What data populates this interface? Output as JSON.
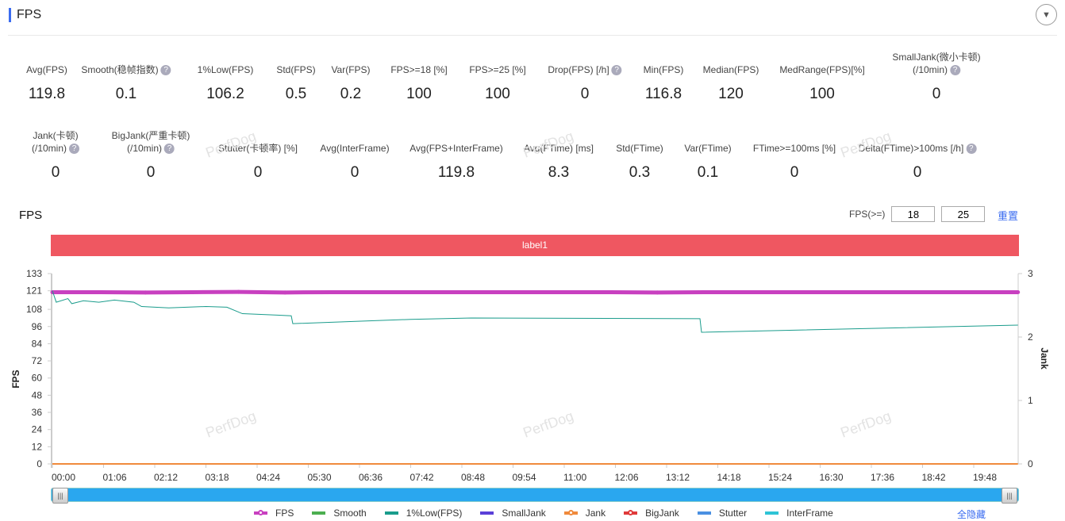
{
  "header": {
    "title": "FPS",
    "collapse_icon": "chevron-down-icon"
  },
  "metrics_row1": [
    {
      "label": "Avg(FPS)",
      "value": "119.8",
      "help": false
    },
    {
      "label": "Smooth(稳帧指数)",
      "value": "0.1",
      "help": true
    },
    {
      "label": "1%Low(FPS)",
      "value": "106.2",
      "help": false
    },
    {
      "label": "Std(FPS)",
      "value": "0.5",
      "help": false
    },
    {
      "label": "Var(FPS)",
      "value": "0.2",
      "help": false
    },
    {
      "label": "FPS>=18 [%]",
      "value": "100",
      "help": false
    },
    {
      "label": "FPS>=25 [%]",
      "value": "100",
      "help": false
    },
    {
      "label": "Drop(FPS) [/h]",
      "value": "0",
      "help": true
    },
    {
      "label": "Min(FPS)",
      "value": "116.8",
      "help": false
    },
    {
      "label": "Median(FPS)",
      "value": "120",
      "help": false
    },
    {
      "label": "MedRange(FPS)[%]",
      "value": "100",
      "help": false
    },
    {
      "label": "SmallJank(微小卡顿)",
      "label2": "(/10min)",
      "value": "0",
      "help": true
    }
  ],
  "metrics_row2": [
    {
      "label": "Jank(卡顿)",
      "label2": "(/10min)",
      "value": "0",
      "help": true
    },
    {
      "label": "BigJank(严重卡顿)",
      "label2": "(/10min)",
      "value": "0",
      "help": true
    },
    {
      "label": "Stutter(卡顿率) [%]",
      "value": "0",
      "help": false
    },
    {
      "label": "Avg(InterFrame)",
      "value": "0",
      "help": false
    },
    {
      "label": "Avg(FPS+InterFrame)",
      "value": "119.8",
      "help": false
    },
    {
      "label": "Avg(FTime) [ms]",
      "value": "8.3",
      "help": false
    },
    {
      "label": "Std(FTime)",
      "value": "0.3",
      "help": false
    },
    {
      "label": "Var(FTime)",
      "value": "0.1",
      "help": false
    },
    {
      "label": "FTime>=100ms [%]",
      "value": "0",
      "help": false
    },
    {
      "label": "Delta(FTime)>100ms [/h]",
      "value": "0",
      "help": true
    }
  ],
  "chart_section": {
    "title": "FPS",
    "fps_threshold_label": "FPS(>=)",
    "threshold1": "18",
    "threshold2": "25",
    "reset_label": "重置",
    "band_label": "label1",
    "hide_all_label": "全隐藏",
    "watermark": "PerfDog"
  },
  "chart_data": {
    "type": "line",
    "ylabel": "FPS",
    "y2label": "Jank",
    "ylim": [
      0,
      133
    ],
    "yticks": [
      0,
      12,
      24,
      36,
      48,
      60,
      72,
      84,
      96,
      108,
      121,
      133
    ],
    "y2lim": [
      0,
      3
    ],
    "y2ticks": [
      0,
      1,
      2,
      3
    ],
    "xticks": [
      "00:00",
      "01:06",
      "02:12",
      "03:18",
      "04:24",
      "05:30",
      "06:36",
      "07:42",
      "08:48",
      "09:54",
      "11:00",
      "12:06",
      "13:12",
      "14:18",
      "15:24",
      "16:30",
      "17:36",
      "18:42",
      "19:48"
    ],
    "xrange": [
      "00:00",
      "20:45"
    ],
    "legend": [
      {
        "name": "FPS",
        "color": "#c840c0"
      },
      {
        "name": "Smooth",
        "color": "#4caf50"
      },
      {
        "name": "1%Low(FPS)",
        "color": "#1a9c8c"
      },
      {
        "name": "SmallJank",
        "color": "#5a3fd8"
      },
      {
        "name": "Jank",
        "color": "#f08a3c"
      },
      {
        "name": "BigJank",
        "color": "#e03a3a"
      },
      {
        "name": "Stutter",
        "color": "#4a90e2"
      },
      {
        "name": "InterFrame",
        "color": "#2ec4d6"
      }
    ],
    "series": [
      {
        "name": "FPS",
        "axis": "left",
        "points": [
          [
            "00:00",
            120
          ],
          [
            "01:00",
            120
          ],
          [
            "02:00",
            119.8
          ],
          [
            "03:00",
            120
          ],
          [
            "04:00",
            120.2
          ],
          [
            "05:00",
            119.8
          ],
          [
            "06:00",
            120
          ],
          [
            "07:00",
            120
          ],
          [
            "08:00",
            120
          ],
          [
            "09:00",
            120
          ],
          [
            "10:00",
            120
          ],
          [
            "11:00",
            120
          ],
          [
            "12:00",
            120
          ],
          [
            "13:00",
            119.8
          ],
          [
            "14:00",
            120
          ],
          [
            "15:00",
            120
          ],
          [
            "16:00",
            120
          ],
          [
            "17:00",
            120
          ],
          [
            "18:00",
            120
          ],
          [
            "19:00",
            120
          ],
          [
            "20:00",
            120
          ],
          [
            "20:45",
            120
          ]
        ]
      },
      {
        "name": "1%Low(FPS)",
        "axis": "left",
        "points": [
          [
            "00:00",
            121
          ],
          [
            "00:05",
            113
          ],
          [
            "00:20",
            115.5
          ],
          [
            "00:25",
            112
          ],
          [
            "00:40",
            114
          ],
          [
            "01:00",
            113
          ],
          [
            "01:20",
            114.5
          ],
          [
            "01:45",
            113
          ],
          [
            "01:55",
            110
          ],
          [
            "02:30",
            109
          ],
          [
            "03:18",
            110
          ],
          [
            "03:45",
            109.5
          ],
          [
            "04:05",
            105
          ],
          [
            "04:50",
            104
          ],
          [
            "05:08",
            103.5
          ],
          [
            "05:10",
            98
          ],
          [
            "06:00",
            99
          ],
          [
            "07:42",
            101
          ],
          [
            "09:00",
            102
          ],
          [
            "13:55",
            101.5
          ],
          [
            "13:57",
            92
          ],
          [
            "20:45",
            97
          ]
        ]
      },
      {
        "name": "Jank",
        "axis": "right",
        "points": [
          [
            "00:00",
            0
          ],
          [
            "20:45",
            0
          ]
        ]
      }
    ]
  }
}
